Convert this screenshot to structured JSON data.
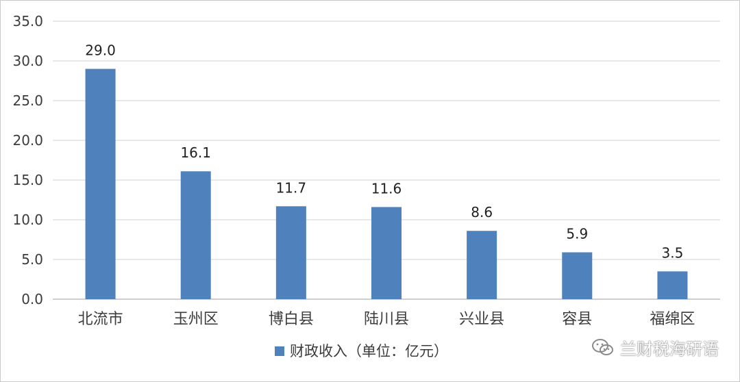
{
  "chart_data": {
    "type": "bar",
    "categories": [
      "北流市",
      "玉州区",
      "博白县",
      "陆川县",
      "兴业县",
      "容县",
      "福绵区"
    ],
    "series": [
      {
        "name": "财政收入（单位：亿元）",
        "values": [
          29.0,
          16.1,
          11.7,
          11.6,
          8.6,
          5.9,
          3.5
        ]
      }
    ],
    "title": "",
    "xlabel": "",
    "ylabel": "",
    "ylim": [
      0,
      35
    ],
    "yticks": [
      "0.0",
      "5.0",
      "10.0",
      "15.0",
      "20.0",
      "25.0",
      "30.0",
      "35.0"
    ],
    "data_labels": [
      "29.0",
      "16.1",
      "11.7",
      "11.6",
      "8.6",
      "5.9",
      "3.5"
    ],
    "grid": true,
    "legend": "bottom",
    "colors": {
      "bar": "#4f81bd",
      "grid": "#d9d9d9",
      "axis": "#bfbfbf"
    }
  },
  "watermark": {
    "text": "兰财税海研语",
    "icon": "wechat-icon"
  }
}
